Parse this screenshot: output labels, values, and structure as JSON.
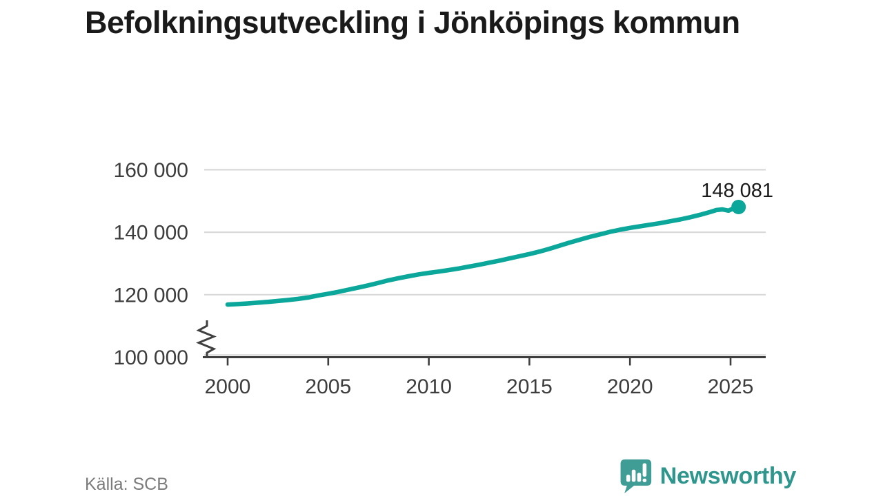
{
  "title": "Befolkningsutveckling i Jönköpings kommun",
  "source": "Källa: SCB",
  "brand": {
    "name": "Newsworthy",
    "text_color": "#2f968e",
    "icon_color": "#3f9d95",
    "icon_detail_color": "#ffffff"
  },
  "chart_data": {
    "type": "line",
    "title": "Befolkningsutveckling i Jönköpings kommun",
    "xlabel": "",
    "ylabel": "",
    "x": [
      2000.0,
      2000.5,
      2001.0,
      2001.5,
      2002.0,
      2002.5,
      2003.0,
      2003.5,
      2004.0,
      2004.5,
      2005.0,
      2005.5,
      2006.0,
      2006.5,
      2007.0,
      2007.5,
      2008.0,
      2008.5,
      2009.0,
      2009.5,
      2010.0,
      2010.5,
      2011.0,
      2011.5,
      2012.0,
      2012.5,
      2013.0,
      2013.5,
      2014.0,
      2014.5,
      2015.0,
      2015.5,
      2016.0,
      2016.5,
      2017.0,
      2017.5,
      2018.0,
      2018.5,
      2019.0,
      2019.5,
      2020.0,
      2020.5,
      2021.0,
      2021.5,
      2022.0,
      2022.5,
      2023.0,
      2023.5,
      2024.0,
      2024.3,
      2024.6,
      2024.9,
      2025.1,
      2025.4
    ],
    "y": [
      116850,
      117000,
      117200,
      117450,
      117700,
      118000,
      118300,
      118650,
      119100,
      119750,
      120300,
      120900,
      121600,
      122300,
      123000,
      123800,
      124600,
      125300,
      125900,
      126500,
      127000,
      127400,
      127900,
      128400,
      129000,
      129600,
      130250,
      130900,
      131600,
      132300,
      133000,
      133800,
      134700,
      135700,
      136700,
      137600,
      138500,
      139300,
      140100,
      140800,
      141400,
      141900,
      142400,
      142900,
      143500,
      144100,
      144800,
      145600,
      146500,
      147100,
      147300,
      146900,
      147500,
      148081
    ],
    "x_ticks": [
      2000,
      2005,
      2010,
      2015,
      2020,
      2025
    ],
    "x_tick_labels": [
      "2000",
      "2005",
      "2010",
      "2015",
      "2020",
      "2025"
    ],
    "y_ticks": [
      100000,
      120000,
      140000,
      160000
    ],
    "y_tick_labels": [
      "100 000",
      "120 000",
      "140 000",
      "160 000"
    ],
    "xlim": [
      1998.8,
      2026.8
    ],
    "ylim": [
      100000,
      162000
    ],
    "y_axis_break": true,
    "grid": "horizontal",
    "legend": "none",
    "end_point": {
      "x": 2025.4,
      "value": 148081,
      "label": "148 081"
    },
    "line_color": "#0ba79b",
    "grid_color": "#d9d9d9",
    "axis_color": "#3f3f3f",
    "tick_label_color": "#3d3d3d",
    "end_label_color": "#1a1a1a"
  }
}
